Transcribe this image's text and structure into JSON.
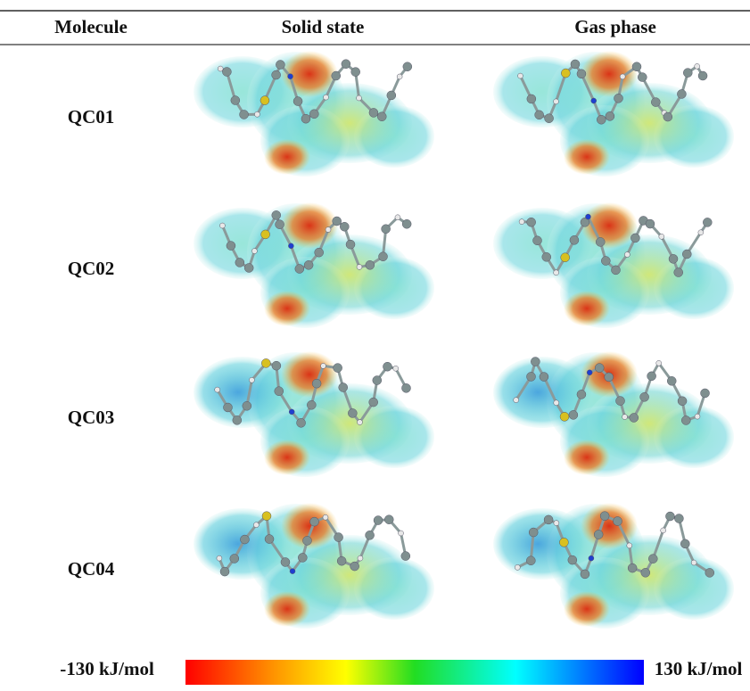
{
  "table": {
    "header": [
      "Molecule",
      "Solid state",
      "Gas phase"
    ],
    "rows": [
      [
        "QC01"
      ],
      [
        "QC02"
      ],
      [
        "QC03"
      ],
      [
        "QC04"
      ]
    ]
  },
  "colorbar": {
    "min_label": "-130 kJ/mol",
    "max_label": "130 kJ/mol"
  }
}
